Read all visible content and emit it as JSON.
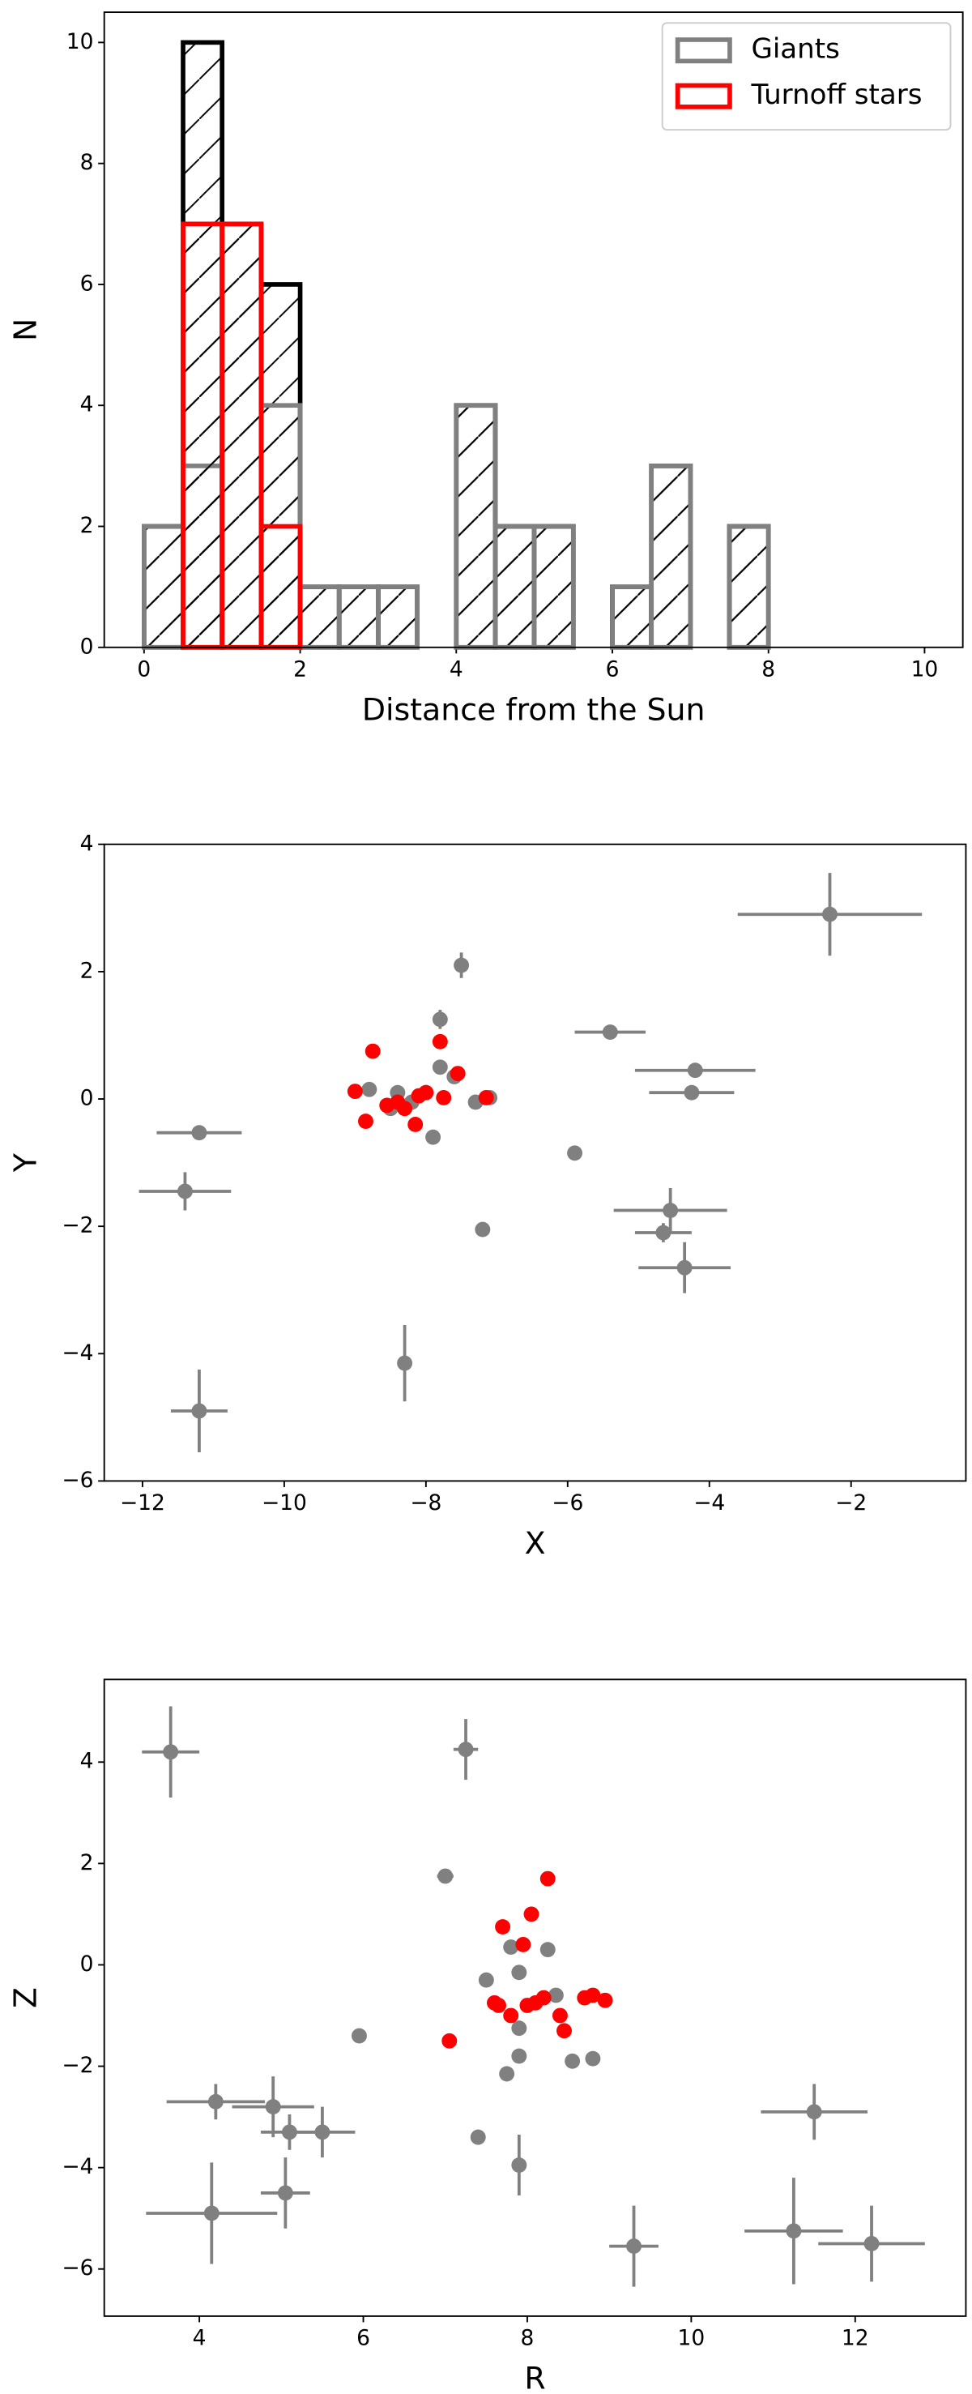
{
  "chart_data": [
    {
      "type": "histogram",
      "x_label": "Distance from the Sun",
      "y_label": "N",
      "bins": [
        0,
        0.5,
        1,
        1.5,
        2,
        2.5,
        3,
        3.5,
        4,
        4.5,
        5,
        5.5,
        6,
        6.5,
        7,
        7.5,
        8,
        8.5,
        9,
        9.5,
        10
      ],
      "series": [
        {
          "color": "#000000",
          "values": [
            2,
            10,
            7,
            6,
            1,
            1,
            1,
            0,
            4,
            2,
            2,
            0,
            1,
            3,
            0,
            2,
            0,
            0,
            0,
            0
          ]
        },
        {
          "name": "Giants",
          "color": "#808080",
          "values": [
            2,
            3,
            0,
            4,
            1,
            1,
            1,
            0,
            4,
            2,
            2,
            0,
            1,
            3,
            0,
            2,
            0,
            0,
            0,
            0
          ]
        },
        {
          "name": "Turnoff stars",
          "color": "#ff0000",
          "values": [
            0,
            7,
            7,
            2,
            0,
            0,
            0,
            0,
            0,
            0,
            0,
            0,
            0,
            0,
            0,
            0,
            0,
            0,
            0,
            0
          ]
        }
      ],
      "hatch": true,
      "legend": "upper right",
      "xlim": [
        -0.51,
        10.49
      ],
      "ylim": [
        0,
        10.5
      ],
      "xticks": [
        0,
        2,
        4,
        6,
        8,
        10
      ],
      "yticks": [
        0,
        2,
        4,
        6,
        8,
        10
      ]
    },
    {
      "type": "scatter",
      "x_label": "X",
      "y_label": "Y",
      "series": [
        {
          "color": "#808080",
          "x": [
            -2.3,
            -7.5,
            -7.8,
            -5.4,
            -4.2,
            -4.25,
            -11.2,
            -11.4,
            -5.9,
            -4.55,
            -4.65,
            -4.35,
            -7.2,
            -8.3,
            -11.2,
            -8.8,
            -8.4,
            -8.5,
            -8.0,
            -7.8,
            -7.6,
            -7.3,
            -7.1,
            -7.9,
            -8.2
          ],
          "y": [
            2.9,
            2.1,
            1.25,
            1.05,
            0.45,
            0.1,
            -0.53,
            -1.45,
            -0.85,
            -1.75,
            -2.1,
            -2.65,
            -2.05,
            -4.15,
            -4.9,
            0.15,
            0.1,
            -0.15,
            0.1,
            0.5,
            0.35,
            -0.05,
            0.02,
            -0.6,
            -0.05
          ],
          "xerr": [
            1.3,
            0.05,
            0.05,
            0.5,
            0.85,
            0.6,
            0.6,
            0.65,
            0,
            0.8,
            0.4,
            0.65,
            0,
            0,
            0.4,
            0,
            0,
            0,
            0,
            0,
            0,
            0,
            0,
            0,
            0
          ],
          "yerr": [
            0.65,
            0.2,
            0.15,
            0.1,
            0,
            0,
            0,
            0.3,
            0,
            0.35,
            0.15,
            0.4,
            0,
            0.6,
            0.65,
            0,
            0,
            0,
            0,
            0,
            0,
            0,
            0,
            0,
            0
          ]
        },
        {
          "color": "#ff0000",
          "x": [
            -8.75,
            -7.8,
            -9.0,
            -8.85,
            -8.4,
            -8.3,
            -8.1,
            -8.0,
            -7.75,
            -7.55,
            -8.15,
            -7.15,
            -8.55
          ],
          "y": [
            0.75,
            0.9,
            0.12,
            -0.35,
            -0.05,
            -0.15,
            0.05,
            0.1,
            0.02,
            0.4,
            -0.4,
            0.02,
            -0.1
          ],
          "xerr": [
            0,
            0,
            0,
            0,
            0,
            0,
            0,
            0,
            0,
            0,
            0,
            0,
            0
          ],
          "yerr": [
            0,
            0,
            0,
            0,
            0,
            0,
            0,
            0,
            0,
            0,
            0,
            0,
            0
          ]
        }
      ],
      "xlim": [
        -12.54,
        -0.38
      ],
      "ylim": [
        -6,
        4
      ],
      "xticks": [
        {
          "value": -12,
          "label": "−12"
        },
        {
          "value": -10,
          "label": "−10"
        },
        {
          "value": -8,
          "label": "−8"
        },
        {
          "value": -6,
          "label": "−6"
        },
        {
          "value": -4,
          "label": "−4"
        },
        {
          "value": -2,
          "label": "−2"
        }
      ],
      "yticks": [
        {
          "value": -6,
          "label": "−6"
        },
        {
          "value": -4,
          "label": "−4"
        },
        {
          "value": -2,
          "label": "−2"
        },
        0,
        2,
        4
      ]
    },
    {
      "type": "scatter",
      "x_label": "R",
      "y_label": "Z",
      "series": [
        {
          "color": "#808080",
          "x": [
            3.65,
            7.25,
            7.0,
            8.25,
            7.8,
            7.9,
            7.5,
            8.35,
            7.9,
            7.9,
            8.55,
            8.8,
            7.75,
            5.95,
            4.2,
            4.9,
            5.1,
            5.5,
            5.05,
            4.15,
            7.4,
            7.9,
            11.5,
            9.3,
            11.25,
            12.2
          ],
          "y": [
            4.2,
            4.25,
            1.75,
            0.3,
            0.35,
            -0.15,
            -0.3,
            -0.6,
            -1.25,
            -1.8,
            -1.9,
            -1.85,
            -2.15,
            -1.4,
            -2.7,
            -2.8,
            -3.3,
            -3.3,
            -4.5,
            -4.9,
            -3.4,
            -3.95,
            -2.9,
            -5.55,
            -5.25,
            -5.5
          ],
          "xerr": [
            0.35,
            0.15,
            0.1,
            0,
            0,
            0,
            0,
            0,
            0,
            0,
            0,
            0,
            0,
            0,
            0.6,
            0.5,
            0.35,
            0.4,
            0.3,
            0.8,
            0,
            0,
            0.65,
            0.3,
            0.6,
            0.65
          ],
          "yerr": [
            0.9,
            0.6,
            0,
            0,
            0,
            0,
            0,
            0,
            0.15,
            0,
            0,
            0.1,
            0.15,
            0,
            0.35,
            0.6,
            0.35,
            0.5,
            0.7,
            1.0,
            0.15,
            0.6,
            0.55,
            0.8,
            1.05,
            0.75
          ]
        },
        {
          "color": "#ff0000",
          "x": [
            8.25,
            8.05,
            7.7,
            7.95,
            7.6,
            7.65,
            8.0,
            8.1,
            8.2,
            7.8,
            8.4,
            8.45,
            8.7,
            8.8,
            8.95,
            7.05
          ],
          "y": [
            1.7,
            1.0,
            0.75,
            0.4,
            -0.75,
            -0.8,
            -0.8,
            -0.75,
            -0.65,
            -1.0,
            -1.0,
            -1.3,
            -0.65,
            -0.6,
            -0.7,
            -1.5
          ],
          "xerr": [
            0,
            0,
            0,
            0,
            0,
            0,
            0,
            0,
            0,
            0,
            0,
            0,
            0,
            0,
            0,
            0
          ],
          "yerr": [
            0,
            0,
            0,
            0,
            0,
            0,
            0,
            0,
            0,
            0,
            0,
            0,
            0,
            0,
            0,
            0
          ]
        }
      ],
      "xlim": [
        2.84,
        13.35
      ],
      "ylim": [
        -6.93,
        5.63
      ],
      "xticks": [
        4,
        6,
        8,
        10,
        12
      ],
      "yticks": [
        {
          "value": -6,
          "label": "−6"
        },
        {
          "value": -4,
          "label": "−4"
        },
        {
          "value": -2,
          "label": "−2"
        },
        0,
        2,
        4
      ]
    }
  ]
}
